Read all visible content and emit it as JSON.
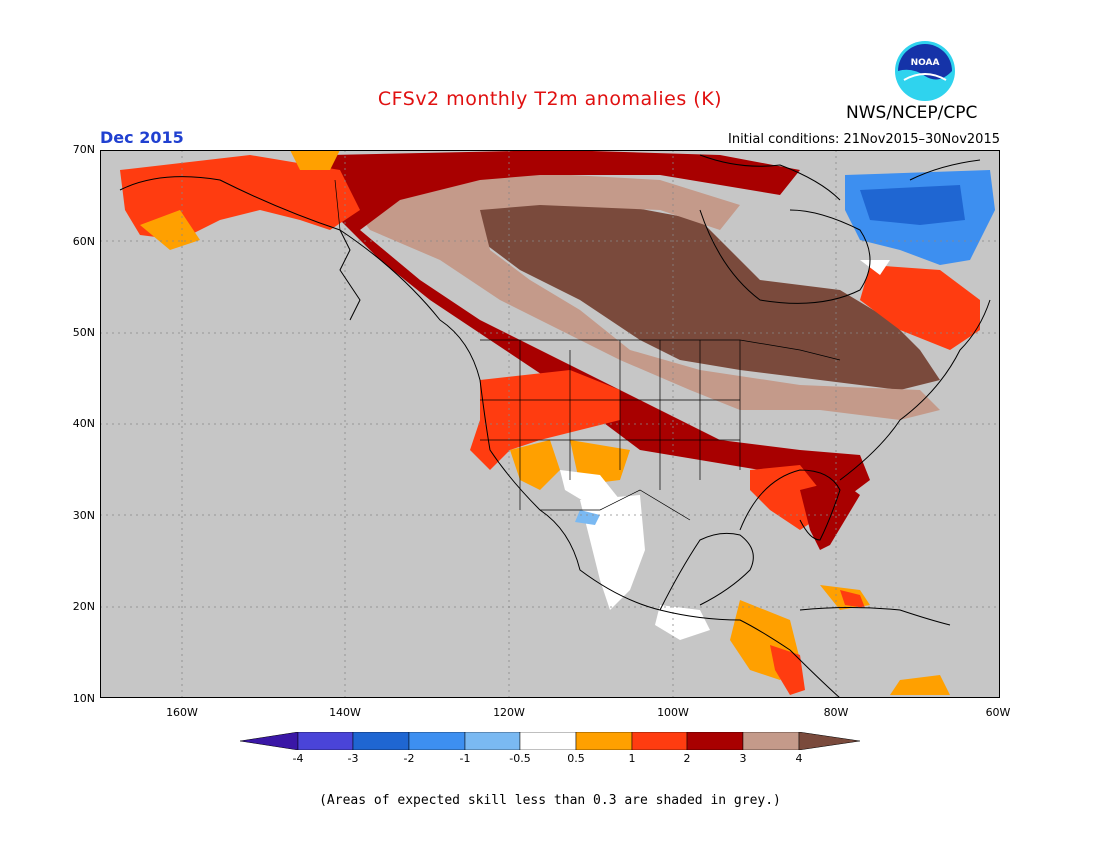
{
  "header": {
    "title": "CFSv2 monthly T2m anomalies (K)",
    "agency": "NWS/NCEP/CPC",
    "logo_text": "NOAA",
    "month": "Dec 2015",
    "initial_conditions": "Initial conditions: 21Nov2015–30Nov2015"
  },
  "axes": {
    "lat_labels": [
      "70N",
      "60N",
      "50N",
      "40N",
      "30N",
      "20N",
      "10N"
    ],
    "lon_labels": [
      "160W",
      "140W",
      "120W",
      "100W",
      "80W",
      "60W"
    ],
    "lon_range": [
      -170,
      -60
    ],
    "lat_range": [
      10,
      70
    ]
  },
  "colorbar": {
    "labels": [
      "-4",
      "-3",
      "-2",
      "-1",
      "-0.5",
      "0.5",
      "1",
      "2",
      "3",
      "4"
    ],
    "colors": [
      "#3a17a6",
      "#4a44d8",
      "#1f66d2",
      "#3d8ff0",
      "#7ab9f2",
      "#ffffff",
      "#ffa000",
      "#ff3c10",
      "#a80000",
      "#c49a8a",
      "#7a4a3c"
    ]
  },
  "colors": {
    "grey_mask": "#c6c6c6",
    "ocean": "#c6c6c6"
  },
  "footnote": "(Areas of expected skill less than 0.3 are shaded in grey.)"
}
